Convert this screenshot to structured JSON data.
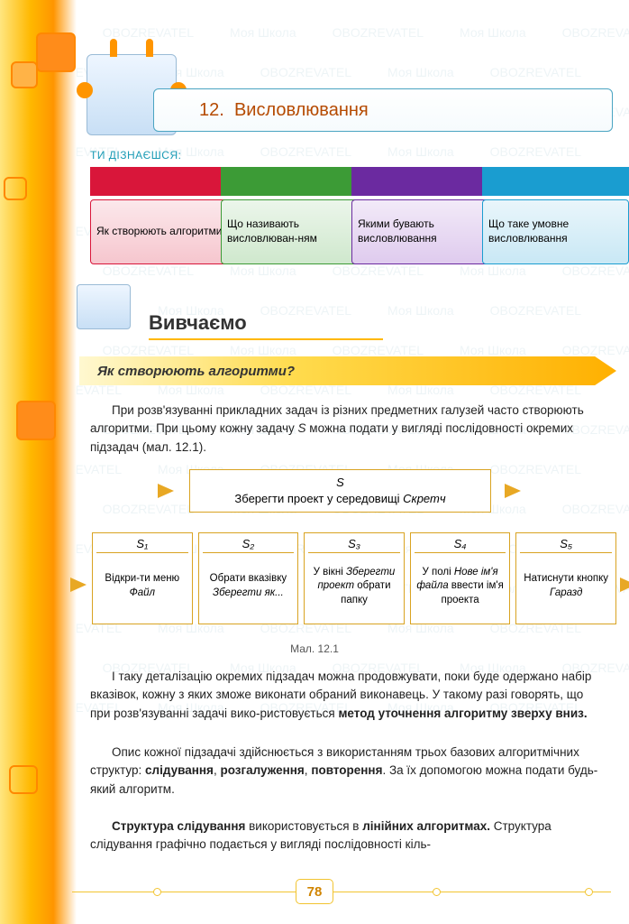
{
  "chapter": {
    "number": "12.",
    "title": "Висловлювання"
  },
  "subheader": "ТИ ДІЗНАЄШСЯ:",
  "tabs": [
    {
      "label": "Як створюють алгоритми",
      "color": "#d9163a",
      "panel_bg": "#f6c6ce",
      "panel_border": "#d9163a"
    },
    {
      "label": "Що називають висловлюван-ням",
      "color": "#3c9b36",
      "panel_bg": "#cfe8cd",
      "panel_border": "#3c9b36"
    },
    {
      "label": "Якими бувають висловлювання",
      "color": "#6b2aa0",
      "panel_bg": "#dfcbee",
      "panel_border": "#6b2aa0"
    },
    {
      "label": "Що таке умовне висловлювання",
      "color": "#1a9dd0",
      "panel_bg": "#c9e8f5",
      "panel_border": "#1a9dd0"
    }
  ],
  "section_title": "Вивчаємо",
  "question_arrow": "Як створюють алгоритми?",
  "para1_a": "При розв'язуванні прикладних задач із різних предметних галузей часто створюють алгоритми. При цьому кожну задачу ",
  "para1_s": "S",
  "para1_b": " можна подати у вигляді послідовності окремих підзадач (мал. 12.1).",
  "main_box": {
    "top": "S",
    "bottom_a": "Зберегти проект у середовищі ",
    "bottom_b": "Скретч"
  },
  "sub_boxes": [
    {
      "head": "S₁",
      "body": "Відкри-ти меню <i>Файл</i>"
    },
    {
      "head": "S₂",
      "body": "Обрати вказівку <i>Зберегти як...</i>"
    },
    {
      "head": "S₃",
      "body": "У вікні <i>Зберегти проект</i> обрати папку"
    },
    {
      "head": "S₄",
      "body": "У полі <i>Нове ім'я файла</i> ввести ім'я проекта"
    },
    {
      "head": "S₅",
      "body": "Натиснути кнопку <i>Гаразд</i>"
    }
  ],
  "caption": "Мал. 12.1",
  "para2_a": "І таку деталізацію окремих підзадач можна продовжувати, поки буде одержано набір вказівок, кожну з яких зможе виконати обраний виконавець. У такому разі говорять, що при розв'язуванні задачі вико-ристовується ",
  "para2_b": "метод уточнення алгоритму зверху вниз.",
  "para3_a": "Опис кожної підзадачі здійснюється з використанням трьох базових алгоритмічних структур: ",
  "para3_b": "слідування",
  "para3_c": ", ",
  "para3_d": "розгалуження",
  "para3_e": ", ",
  "para3_f": "повторення",
  "para3_g": ". За їх допомогою можна подати будь-який алгоритм.",
  "para4_a": "Структура слідування",
  "para4_b": " використовується в ",
  "para4_c": "лінійних алгоритмах.",
  "para4_d": " Структура слідування графічно подається у вигляді послідовності кіль-",
  "page_number": "78",
  "watermark_items": [
    "Моя Школа",
    "OBOZREVATEL"
  ]
}
